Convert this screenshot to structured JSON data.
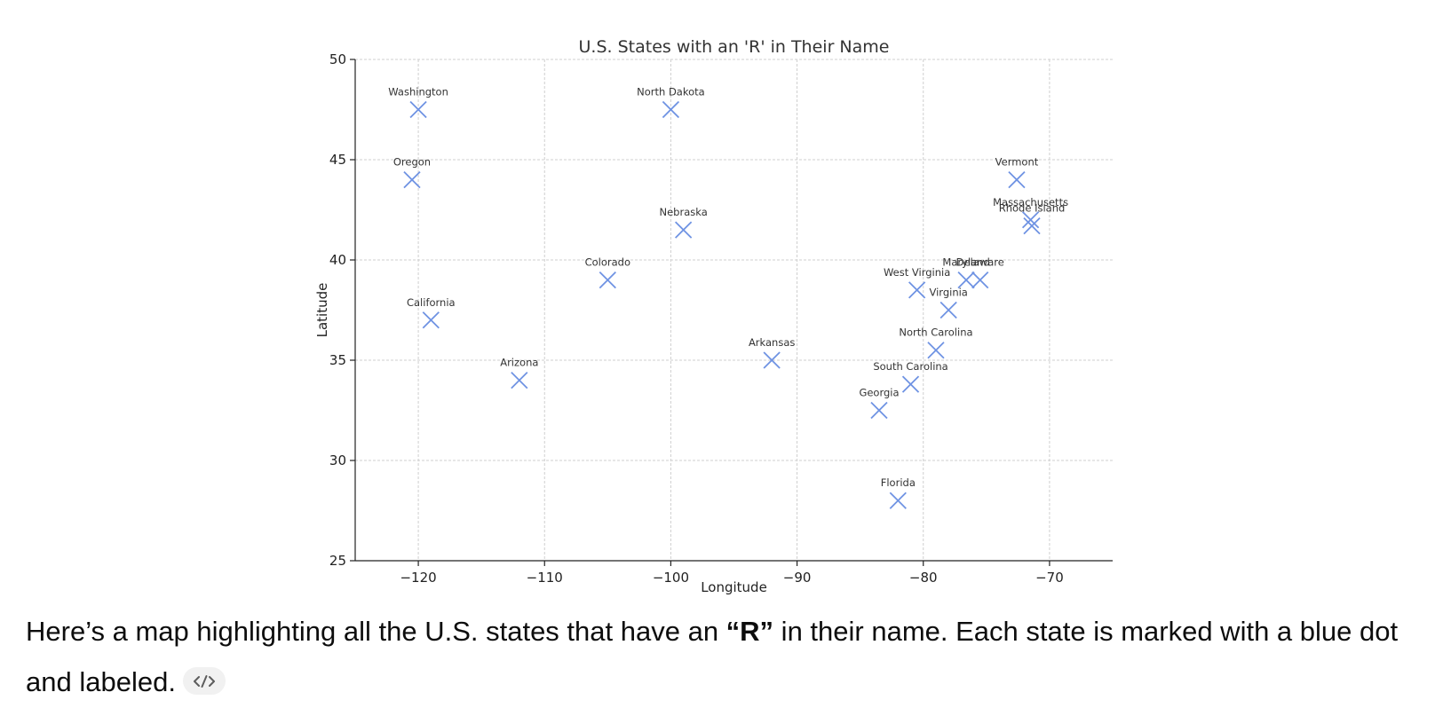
{
  "chart_data": {
    "type": "scatter",
    "title": "U.S. States with an 'R' in Their Name",
    "xlabel": "Longitude",
    "ylabel": "Latitude",
    "xlim": [
      -125,
      -65
    ],
    "ylim": [
      25,
      50
    ],
    "xticks": [
      -120,
      -110,
      -100,
      -90,
      -80,
      -70
    ],
    "yticks": [
      25,
      30,
      35,
      40,
      45,
      50
    ],
    "xtick_labels": [
      "−120",
      "−110",
      "−100",
      "−90",
      "−80",
      "−70"
    ],
    "ytick_labels": [
      "25",
      "30",
      "35",
      "40",
      "45",
      "50"
    ],
    "grid": true,
    "marker": "x",
    "color": "#6f93e3",
    "points": [
      {
        "label": "Washington",
        "x": -120.0,
        "y": 47.5
      },
      {
        "label": "North Dakota",
        "x": -100.0,
        "y": 47.5
      },
      {
        "label": "Oregon",
        "x": -120.5,
        "y": 44.0
      },
      {
        "label": "Vermont",
        "x": -72.6,
        "y": 44.0
      },
      {
        "label": "Massachusetts",
        "x": -71.5,
        "y": 42.0
      },
      {
        "label": "Rhode Island",
        "x": -71.4,
        "y": 41.7
      },
      {
        "label": "Nebraska",
        "x": -99.0,
        "y": 41.5
      },
      {
        "label": "Colorado",
        "x": -105.0,
        "y": 39.0
      },
      {
        "label": "Maryland",
        "x": -76.6,
        "y": 39.0
      },
      {
        "label": "Delaware",
        "x": -75.5,
        "y": 39.0
      },
      {
        "label": "West Virginia",
        "x": -80.5,
        "y": 38.5
      },
      {
        "label": "Virginia",
        "x": -78.0,
        "y": 37.5
      },
      {
        "label": "California",
        "x": -119.0,
        "y": 37.0
      },
      {
        "label": "North Carolina",
        "x": -79.0,
        "y": 35.5
      },
      {
        "label": "Arkansas",
        "x": -92.0,
        "y": 35.0
      },
      {
        "label": "Arizona",
        "x": -112.0,
        "y": 34.0
      },
      {
        "label": "South Carolina",
        "x": -81.0,
        "y": 33.8
      },
      {
        "label": "Georgia",
        "x": -83.5,
        "y": 32.5
      },
      {
        "label": "Florida",
        "x": -82.0,
        "y": 28.0
      }
    ]
  },
  "message": {
    "before": "Here’s a map highlighting all the U.S. states that have an ",
    "emphasis": "“R”",
    "after": " in their name. Each state is marked with a blue dot and labeled."
  },
  "code_toggle_icon": "code-icon"
}
